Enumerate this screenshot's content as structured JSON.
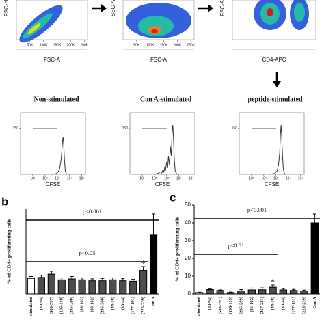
{
  "chart_data": [
    {
      "type": "density",
      "x_label": "FSC-A",
      "y_label": "FSC-H",
      "xlim": [
        0,
        262144
      ],
      "xticks": [
        {
          "value": 50000,
          "label": "50K"
        },
        {
          "value": 100000,
          "label": "100K"
        },
        {
          "value": 150000,
          "label": "150K"
        },
        {
          "value": 200000,
          "label": "200K"
        },
        {
          "value": 250000,
          "label": "250K"
        }
      ]
    },
    {
      "type": "density",
      "x_label": "FSC-A",
      "y_label": "SSC-A",
      "xlim": [
        0,
        262144
      ],
      "xticks": [
        {
          "value": 50000,
          "label": "50K"
        },
        {
          "value": 100000,
          "label": "100K"
        },
        {
          "value": 150000,
          "label": "150K"
        },
        {
          "value": 200000,
          "label": "200K"
        },
        {
          "value": 250000,
          "label": "250K"
        }
      ]
    },
    {
      "type": "density",
      "x_label": "CD4-APC",
      "y_label": "FSC-A"
    },
    {
      "type": "line",
      "title": "Non-stimulated",
      "x_label": "CFSE",
      "xscale": "log",
      "xlim": [
        1,
        200000
      ],
      "ylim": [
        0,
        200
      ],
      "yticks": [
        150
      ],
      "color": "#333333",
      "xticks": [
        {
          "value": 10,
          "label": "10¹"
        },
        {
          "value": 100,
          "label": "10²"
        },
        {
          "value": 1000,
          "label": "10³"
        },
        {
          "value": 10000,
          "label": "10⁴"
        },
        {
          "value": 100000,
          "label": "10⁵"
        }
      ],
      "x": [
        300,
        800,
        1200,
        1600,
        2000,
        2400,
        2700,
        3000,
        3300,
        3800,
        4500,
        6000
      ],
      "values": [
        0,
        2,
        8,
        20,
        45,
        80,
        110,
        120,
        100,
        50,
        10,
        0
      ]
    },
    {
      "type": "line",
      "title": "Con A-stimulated",
      "x_label": "CFSE",
      "xscale": "log",
      "xlim": [
        1,
        200000
      ],
      "ylim": [
        0,
        200
      ],
      "yticks": [
        150
      ],
      "color": "#333333",
      "xticks": [
        {
          "value": 10,
          "label": "10¹"
        },
        {
          "value": 100,
          "label": "10²"
        },
        {
          "value": 1000,
          "label": "10³"
        },
        {
          "value": 10000,
          "label": "10⁴"
        },
        {
          "value": 100000,
          "label": "10⁵"
        }
      ],
      "x": [
        100,
        200,
        300,
        400,
        500,
        600,
        700,
        800,
        1000,
        1200,
        1400,
        1700,
        2000,
        2400,
        2800,
        3200,
        3600,
        4200,
        5000,
        7000
      ],
      "values": [
        0,
        3,
        8,
        4,
        15,
        8,
        25,
        12,
        40,
        20,
        60,
        30,
        90,
        60,
        140,
        160,
        120,
        50,
        10,
        0
      ]
    },
    {
      "type": "line",
      "title": "peptide-stimulated",
      "x_label": "CFSE",
      "xscale": "log",
      "xlim": [
        1,
        200000
      ],
      "ylim": [
        0,
        200
      ],
      "yticks": [
        150
      ],
      "color": "#333333",
      "xticks": [
        {
          "value": 10,
          "label": "10¹"
        },
        {
          "value": 100,
          "label": "10²"
        },
        {
          "value": 1000,
          "label": "10³"
        },
        {
          "value": 10000,
          "label": "10⁴"
        },
        {
          "value": 100000,
          "label": "10⁵"
        }
      ],
      "x": [
        300,
        800,
        1200,
        1600,
        2000,
        2300,
        2600,
        2900,
        3300,
        3800,
        4500,
        6000
      ],
      "values": [
        0,
        3,
        10,
        30,
        70,
        130,
        160,
        130,
        70,
        25,
        5,
        0
      ]
    },
    {
      "type": "bar",
      "panel": "b",
      "y_label": "% of CD4+ proliferating cells",
      "ylim": [
        0,
        1.8
      ],
      "categories": [
        "stimulated",
        "(80-94)",
        "(583-597)",
        "(105-119)",
        "(285-299)",
        "(86-102)",
        "(88-102)",
        "(286-300)",
        "(44-58)",
        "(30-44)",
        "(177-191)",
        "(225-239)",
        "Con A"
      ],
      "values": [
        0.33,
        0.35,
        0.42,
        0.3,
        0.32,
        0.3,
        0.28,
        0.28,
        0.3,
        0.28,
        0.27,
        0.5,
        1.25
      ],
      "errors": [
        0.04,
        0.05,
        0.06,
        0.04,
        0.05,
        0.04,
        0.04,
        0.05,
        0.04,
        0.05,
        0.04,
        0.08,
        0.45
      ],
      "colors": [
        "#ffffff",
        "#4d4d4d",
        "#4d4d4d",
        "#4d4d4d",
        "#4d4d4d",
        "#4d4d4d",
        "#4d4d4d",
        "#4d4d4d",
        "#4d4d4d",
        "#4d4d4d",
        "#4d4d4d",
        "#4d4d4d",
        "#000000"
      ],
      "annotations": [
        "p<0.001",
        "p<0.05",
        "*"
      ]
    },
    {
      "type": "bar",
      "panel": "c",
      "y_label": "% of CD4+ proliferating cells",
      "ylim": [
        0,
        50
      ],
      "yticks": [
        0,
        10,
        20,
        30,
        40,
        50
      ],
      "categories": [
        "stimulated",
        "(80-94)",
        "(583-597)",
        "(195-119)",
        "(285-299)",
        "(86-102)",
        "(267-281)",
        "(44-58)",
        "(30-44)",
        "(177-191)",
        "(225-239)",
        "Con A"
      ],
      "values": [
        0.8,
        2.5,
        2.0,
        0.8,
        1.7,
        2.3,
        2.4,
        3.8,
        2.3,
        2.0,
        1.7,
        40
      ],
      "errors": [
        0.2,
        0.3,
        0.3,
        0.3,
        0.8,
        1.0,
        1.0,
        1.2,
        0.8,
        0.6,
        0.5,
        5
      ],
      "colors": [
        "#ffffff",
        "#4d4d4d",
        "#4d4d4d",
        "#4d4d4d",
        "#4d4d4d",
        "#4d4d4d",
        "#4d4d4d",
        "#4d4d4d",
        "#4d4d4d",
        "#4d4d4d",
        "#4d4d4d",
        "#000000"
      ],
      "annotations": [
        "p<0.001",
        "p<0.01",
        "*"
      ]
    }
  ]
}
